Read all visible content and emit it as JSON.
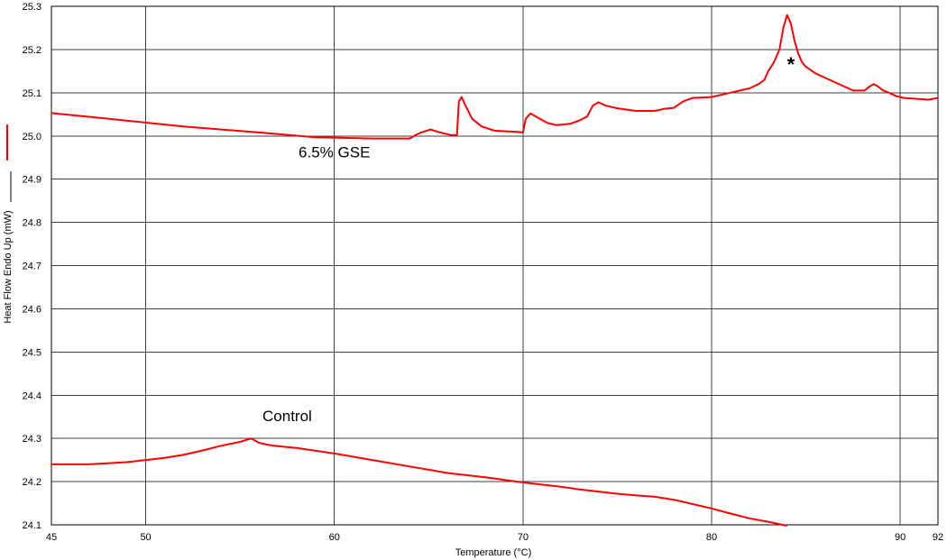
{
  "chart_data": {
    "type": "line",
    "title": "",
    "xlabel": "Temperature (°C)",
    "ylabel": "Heat Flow Endo Up (mW)",
    "xlim": [
      45,
      92
    ],
    "ylim": [
      24.1,
      25.3
    ],
    "grid": true,
    "x_ticks": [
      45,
      50,
      60,
      70,
      80,
      90,
      92
    ],
    "x_tick_labels": [
      "45",
      "50",
      "60",
      "70",
      "80",
      "90",
      "92"
    ],
    "y_ticks": [
      24.1,
      24.2,
      24.3,
      24.4,
      24.5,
      24.6,
      24.7,
      24.8,
      24.9,
      25.0,
      25.1,
      25.2,
      25.3
    ],
    "y_tick_labels": [
      "24.1",
      "24.2",
      "24.3",
      "24.4",
      "24.5",
      "24.6",
      "24.7",
      "24.8",
      "24.9",
      "25.0",
      "25.1",
      "25.2",
      "25.3"
    ],
    "colors": {
      "series": "#ff0000",
      "grid": "#404040",
      "axis": "#000000"
    },
    "series": [
      {
        "name": "6.5% GSE",
        "x": [
          45,
          48,
          52,
          56,
          59,
          62,
          64,
          64.3,
          64.6,
          65.1,
          65.6,
          66.2,
          66.5,
          66.6,
          66.75,
          66.9,
          67.3,
          67.8,
          68.5,
          69.5,
          70,
          70.15,
          70.4,
          70.8,
          71.3,
          71.8,
          72.5,
          73,
          73.4,
          73.7,
          74,
          74.4,
          75,
          76,
          77,
          77.5,
          78,
          78.5,
          79,
          80,
          81,
          82,
          82.5,
          82.8,
          83,
          83.3,
          83.6,
          83.8,
          84,
          84.2,
          84.4,
          84.6,
          84.8,
          85,
          85.5,
          86,
          86.5,
          87,
          87.5,
          88.1,
          88.4,
          88.6,
          88.8,
          89.1,
          89.4,
          89.8,
          90.2,
          90.8,
          91.5,
          92
        ],
        "y": [
          25.053,
          25.04,
          25.022,
          25.008,
          24.997,
          24.994,
          24.994,
          25.002,
          25.008,
          25.015,
          25.008,
          25.002,
          25.002,
          25.08,
          25.09,
          25.075,
          25.04,
          25.022,
          25.012,
          25.01,
          25.008,
          25.04,
          25.052,
          25.042,
          25.03,
          25.025,
          25.028,
          25.036,
          25.045,
          25.07,
          25.078,
          25.07,
          25.064,
          25.058,
          25.058,
          25.063,
          25.065,
          25.08,
          25.088,
          25.09,
          25.1,
          25.11,
          25.12,
          25.13,
          25.15,
          25.17,
          25.2,
          25.25,
          25.28,
          25.26,
          25.22,
          25.19,
          25.17,
          25.16,
          25.145,
          25.135,
          25.125,
          25.115,
          25.105,
          25.105,
          25.115,
          25.12,
          25.115,
          25.105,
          25.1,
          25.092,
          25.088,
          25.086,
          25.084,
          25.088
        ]
      },
      {
        "name": "Control",
        "x": [
          45,
          47,
          49,
          50,
          51,
          52,
          53,
          54,
          55,
          55.6,
          55.8,
          56,
          56.5,
          57,
          58,
          60,
          62,
          64,
          66,
          68,
          70,
          72,
          73,
          74,
          75,
          76,
          77,
          78,
          79,
          80,
          81,
          82,
          83,
          84
        ],
        "y": [
          24.24,
          24.24,
          24.245,
          24.25,
          24.255,
          24.262,
          24.272,
          24.283,
          24.292,
          24.3,
          24.295,
          24.29,
          24.285,
          24.282,
          24.278,
          24.265,
          24.25,
          24.235,
          24.22,
          24.21,
          24.198,
          24.188,
          24.182,
          24.177,
          24.172,
          24.168,
          24.165,
          24.158,
          24.148,
          24.138,
          24.126,
          24.115,
          24.107,
          24.098
        ]
      }
    ],
    "annotations": [
      {
        "text": "6.5% GSE",
        "x": 60,
        "y": 24.95
      },
      {
        "text": "Control",
        "x": 57.5,
        "y": 24.34
      },
      {
        "text": "*",
        "x": 84.2,
        "y": 25.15
      }
    ]
  }
}
